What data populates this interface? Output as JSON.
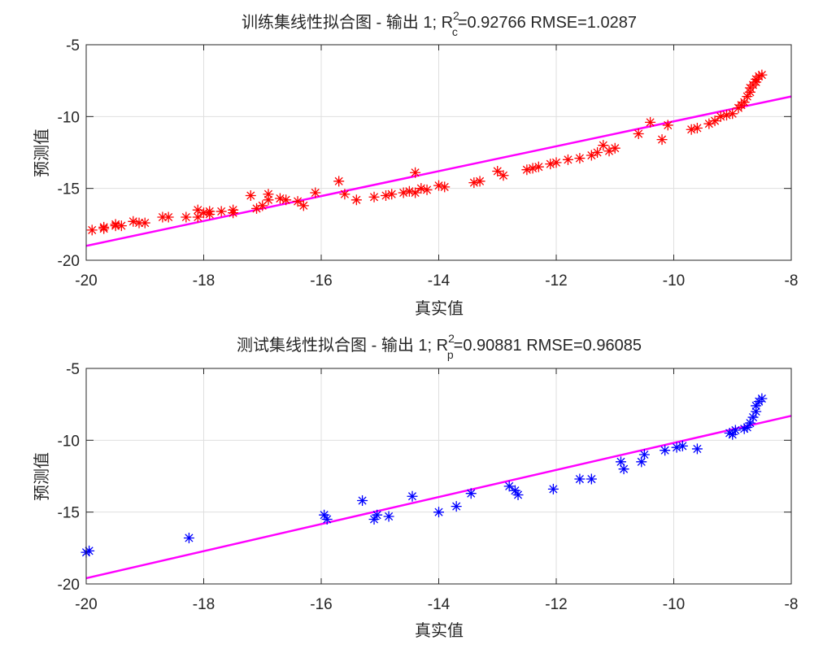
{
  "chart_data": [
    {
      "type": "scatter",
      "title_prefix": "训练集线性拟合图 - 输出 1; R",
      "r2_sup": "2",
      "r2_sub": "c",
      "title_suffix": "=0.92766  RMSE=1.0287",
      "xlabel": "真实值",
      "ylabel": "预测值",
      "xlim": [
        -20,
        -8
      ],
      "ylim": [
        -20,
        -5
      ],
      "xticks": [
        -20,
        -18,
        -16,
        -14,
        -12,
        -10,
        -8
      ],
      "yticks": [
        -20,
        -15,
        -10,
        -5
      ],
      "grid": true,
      "marker": "asterisk",
      "marker_color": "#ff0000",
      "fit_color": "#ff00ff",
      "fit_line": {
        "x": [
          -20,
          -8
        ],
        "y": [
          -19.0,
          -8.6
        ]
      },
      "points": {
        "x": [
          -19.9,
          -19.7,
          -19.7,
          -19.5,
          -19.5,
          -19.4,
          -19.2,
          -19.1,
          -19.0,
          -18.7,
          -18.6,
          -18.3,
          -18.1,
          -18.1,
          -18.0,
          -17.9,
          -17.9,
          -17.7,
          -17.5,
          -17.5,
          -17.2,
          -17.1,
          -17.0,
          -16.9,
          -16.9,
          -16.7,
          -16.6,
          -16.4,
          -16.3,
          -16.1,
          -15.7,
          -15.6,
          -15.4,
          -15.1,
          -14.9,
          -14.8,
          -14.6,
          -14.5,
          -14.4,
          -14.4,
          -14.3,
          -14.2,
          -14.0,
          -13.9,
          -13.4,
          -13.3,
          -13.0,
          -12.9,
          -12.5,
          -12.4,
          -12.3,
          -12.1,
          -12.0,
          -11.8,
          -11.6,
          -11.4,
          -11.3,
          -11.2,
          -11.1,
          -11.0,
          -10.6,
          -10.4,
          -10.2,
          -10.1,
          -9.7,
          -9.6,
          -9.4,
          -9.3,
          -9.2,
          -9.1,
          -9.0,
          -8.9,
          -8.85,
          -8.8,
          -8.75,
          -8.7,
          -8.7,
          -8.65,
          -8.6,
          -8.6,
          -8.55,
          -8.5
        ],
        "y": [
          -17.9,
          -17.8,
          -17.7,
          -17.6,
          -17.5,
          -17.6,
          -17.3,
          -17.4,
          -17.4,
          -17.0,
          -17.0,
          -17.0,
          -16.5,
          -17.0,
          -16.7,
          -16.6,
          -16.8,
          -16.6,
          -16.7,
          -16.5,
          -15.5,
          -16.4,
          -16.2,
          -15.8,
          -15.4,
          -15.7,
          -15.8,
          -15.9,
          -16.2,
          -15.3,
          -14.5,
          -15.4,
          -15.8,
          -15.6,
          -15.5,
          -15.4,
          -15.3,
          -15.2,
          -13.9,
          -15.3,
          -15.0,
          -15.1,
          -14.8,
          -14.9,
          -14.6,
          -14.5,
          -13.8,
          -14.1,
          -13.7,
          -13.6,
          -13.5,
          -13.3,
          -13.2,
          -13.0,
          -12.9,
          -12.7,
          -12.5,
          -12.0,
          -12.4,
          -12.2,
          -11.2,
          -10.4,
          -11.6,
          -10.6,
          -10.9,
          -10.8,
          -10.5,
          -10.3,
          -10.0,
          -9.9,
          -9.8,
          -9.4,
          -9.2,
          -9.0,
          -8.6,
          -8.3,
          -8.0,
          -7.8,
          -7.6,
          -7.4,
          -7.2,
          -7.1
        ]
      }
    },
    {
      "type": "scatter",
      "title_prefix": "测试集线性拟合图 - 输出 1; R",
      "r2_sup": "2",
      "r2_sub": "p",
      "title_suffix": "=0.90881  RMSE=0.96085",
      "xlabel": "真实值",
      "ylabel": "预测值",
      "xlim": [
        -20,
        -8
      ],
      "ylim": [
        -20,
        -5
      ],
      "xticks": [
        -20,
        -18,
        -16,
        -14,
        -12,
        -10,
        -8
      ],
      "yticks": [
        -20,
        -15,
        -10,
        -5
      ],
      "grid": true,
      "marker": "asterisk",
      "marker_color": "#0000ff",
      "fit_color": "#ff00ff",
      "fit_line": {
        "x": [
          -20,
          -8
        ],
        "y": [
          -19.6,
          -8.3
        ]
      },
      "points": {
        "x": [
          -20.0,
          -19.95,
          -18.25,
          -15.95,
          -15.9,
          -15.3,
          -15.1,
          -15.05,
          -14.85,
          -14.45,
          -14.0,
          -13.7,
          -13.45,
          -12.8,
          -12.7,
          -12.65,
          -12.05,
          -11.6,
          -11.4,
          -10.9,
          -10.85,
          -10.55,
          -10.5,
          -10.15,
          -9.95,
          -9.85,
          -9.6,
          -9.05,
          -9.0,
          -8.95,
          -8.8,
          -8.75,
          -8.7,
          -8.65,
          -8.6,
          -8.6,
          -8.55,
          -8.5
        ],
        "y": [
          -17.8,
          -17.7,
          -16.8,
          -15.2,
          -15.5,
          -14.2,
          -15.5,
          -15.2,
          -15.3,
          -13.9,
          -15.0,
          -14.6,
          -13.7,
          -13.2,
          -13.5,
          -13.8,
          -13.4,
          -12.7,
          -12.7,
          -11.5,
          -12.0,
          -11.5,
          -11.0,
          -10.7,
          -10.5,
          -10.4,
          -10.6,
          -9.5,
          -9.6,
          -9.3,
          -9.2,
          -9.1,
          -8.8,
          -8.4,
          -8.0,
          -7.6,
          -7.3,
          -7.1
        ]
      }
    }
  ]
}
